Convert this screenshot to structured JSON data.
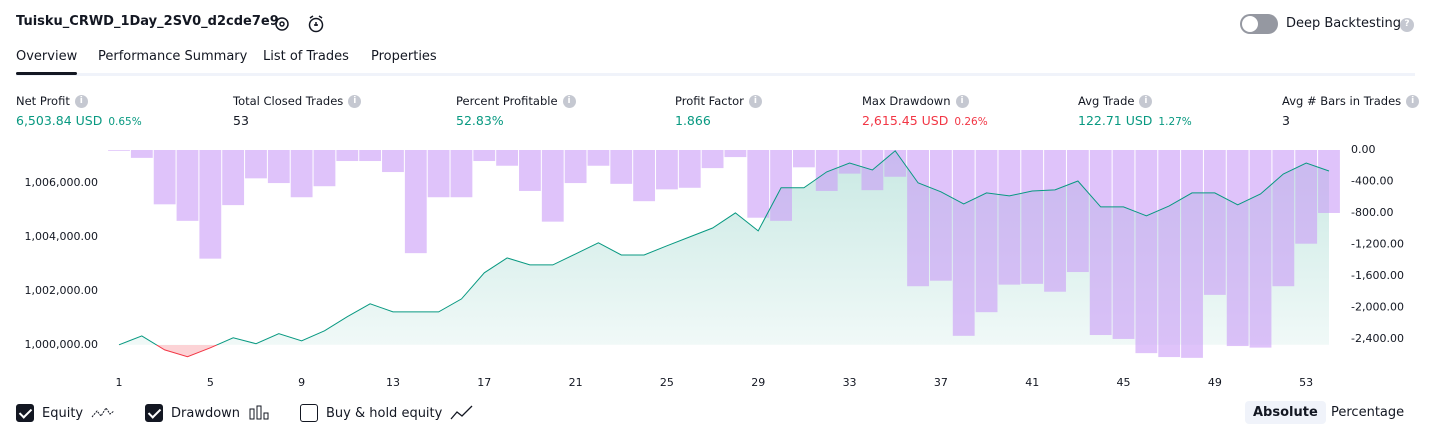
{
  "header": {
    "title": "Tuisku_CRWD_1Day_2SV0_d2cde7e9",
    "deep_backtesting": "Deep Backtesting"
  },
  "tabs": [
    "Overview",
    "Performance Summary",
    "List of Trades",
    "Properties"
  ],
  "metrics": [
    {
      "label": "Net Profit",
      "value": "6,503.84 USD",
      "percent": "0.65%",
      "tone": "positive"
    },
    {
      "label": "Total Closed Trades",
      "value": "53",
      "tone": "neutral"
    },
    {
      "label": "Percent Profitable",
      "value": "52.83%",
      "tone": "positive"
    },
    {
      "label": "Profit Factor",
      "value": "1.866",
      "tone": "positive"
    },
    {
      "label": "Max Drawdown",
      "value": "2,615.45 USD",
      "percent": "0.26%",
      "tone": "negative"
    },
    {
      "label": "Avg Trade",
      "value": "122.71 USD",
      "percent": "1.27%",
      "tone": "positive"
    },
    {
      "label": "Avg # Bars in Trades",
      "value": "3",
      "tone": "neutral"
    }
  ],
  "chart_data": {
    "type": "combo",
    "categories": [
      1,
      null,
      null,
      null,
      5,
      null,
      null,
      null,
      9,
      null,
      null,
      null,
      13,
      null,
      null,
      null,
      17,
      null,
      null,
      null,
      21,
      null,
      null,
      null,
      25,
      null,
      null,
      null,
      29,
      null,
      null,
      null,
      33,
      null,
      null,
      null,
      37,
      null,
      null,
      null,
      41,
      null,
      null,
      null,
      45,
      null,
      null,
      null,
      49,
      null,
      null,
      null,
      53,
      null
    ],
    "series": [
      {
        "name": "Equity",
        "type": "area",
        "color": "#089981",
        "negative_color": "#f23645",
        "values": [
          1000000,
          1000330,
          999810,
          999560,
          999890,
          1000260,
          1000040,
          1000410,
          1000150,
          1000520,
          1001040,
          1001520,
          1001220,
          1001220,
          1001220,
          1001700,
          1002670,
          1003220,
          1002960,
          1002960,
          1003370,
          1003780,
          1003330,
          1003330,
          1003670,
          1004000,
          1004330,
          1004890,
          1004220,
          1005820,
          1005820,
          1006410,
          1006740,
          1006480,
          1007190,
          1006000,
          1005670,
          1005220,
          1005630,
          1005520,
          1005700,
          1005740,
          1006070,
          1005110,
          1005110,
          1004780,
          1005150,
          1005630,
          1005630,
          1005190,
          1005590,
          1006330,
          1006740,
          1006440
        ]
      },
      {
        "name": "Drawdown",
        "type": "bar",
        "axis": "y2",
        "color": "#c99bf7",
        "values": [
          -10,
          -100,
          -690,
          -900,
          -1380,
          -700,
          -360,
          -420,
          -600,
          -460,
          -140,
          -140,
          -280,
          -1310,
          -600,
          -600,
          -140,
          -200,
          -520,
          -910,
          -420,
          -200,
          -430,
          -650,
          -500,
          -480,
          -230,
          -90,
          -860,
          -900,
          -220,
          -520,
          -300,
          -510,
          -340,
          -1730,
          -1660,
          -2360,
          -2060,
          -1710,
          -1700,
          -1800,
          -1550,
          -2350,
          -2400,
          -2580,
          -2630,
          -2640,
          -1840,
          -2490,
          -2510,
          -1730,
          -1190,
          -800
        ]
      }
    ],
    "ylim": [
      999400,
      1007220
    ],
    "yticks": [
      {
        "value": 1000000,
        "label": "1,000,000.00"
      },
      {
        "value": 1002000,
        "label": "1,002,000.00"
      },
      {
        "value": 1004000,
        "label": "1,004,000.00"
      },
      {
        "value": 1006000,
        "label": "1,006,000.00"
      }
    ],
    "y2lim": [
      -2680,
      0
    ],
    "y2ticks": [
      {
        "value": 0,
        "label": "0.00"
      },
      {
        "value": -400,
        "label": "-400.00"
      },
      {
        "value": -800,
        "label": "-800.00"
      },
      {
        "value": -1200,
        "label": "-1,200.00"
      },
      {
        "value": -1600,
        "label": "-1,600.00"
      },
      {
        "value": -2000,
        "label": "-2,000.00"
      },
      {
        "value": -2400,
        "label": "-2,400.00"
      }
    ],
    "buy_hold_label": "Buy & hold equity",
    "buy_hold_checked": false,
    "scale_buttons": [
      "Absolute",
      "Percentage"
    ]
  }
}
